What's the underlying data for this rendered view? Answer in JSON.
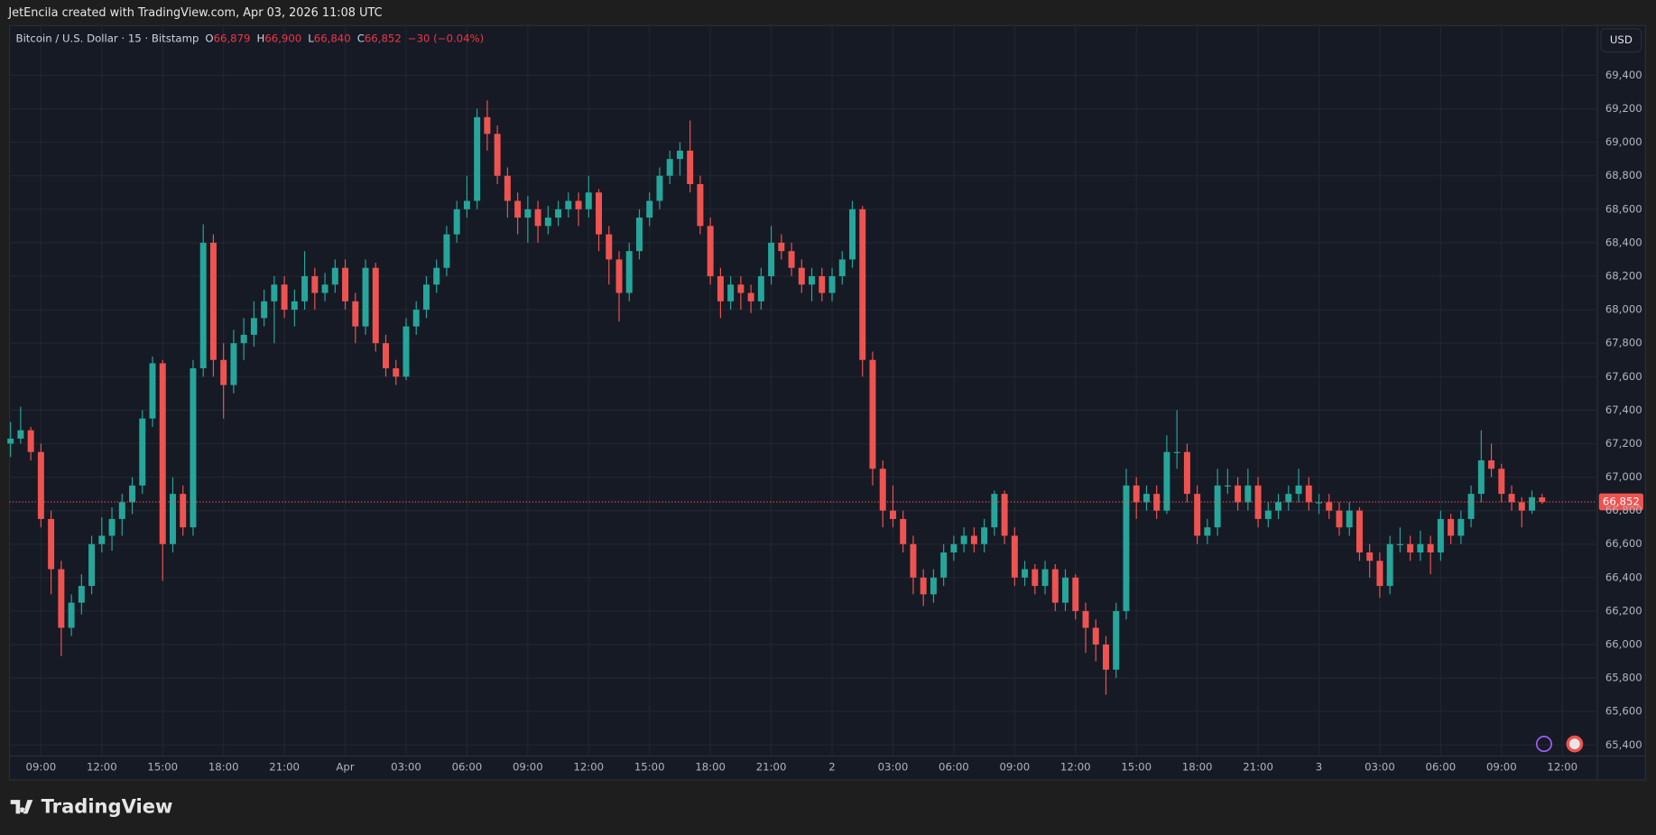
{
  "header": {
    "credit": "JetEncila created with TradingView.com, Apr 03, 2026 11:08 UTC"
  },
  "chart_data": {
    "type": "candlestick",
    "symbol": "Bitcoin / U.S. Dollar · 15 · Bitstamp",
    "ohlc_legend": [
      {
        "key": "O",
        "text": "66,879"
      },
      {
        "key": "H",
        "text": "66,900"
      },
      {
        "key": "L",
        "text": "66,840"
      },
      {
        "key": "C",
        "text": "66,852"
      }
    ],
    "change": "−30 (−0.04%)",
    "currency": "USD",
    "up_color": "#26a69a",
    "down_color": "#ef5350",
    "ohlc": [
      [
        67200,
        67330,
        67120,
        67230
      ],
      [
        67230,
        67420,
        67200,
        67280
      ],
      [
        67280,
        67300,
        67100,
        67150
      ],
      [
        67150,
        67200,
        66700,
        66750
      ],
      [
        66750,
        66800,
        66300,
        66450
      ],
      [
        66450,
        66500,
        65930,
        66100
      ],
      [
        66100,
        66300,
        66050,
        66250
      ],
      [
        66250,
        66420,
        66180,
        66350
      ],
      [
        66350,
        66650,
        66300,
        66600
      ],
      [
        66600,
        66760,
        66550,
        66650
      ],
      [
        66650,
        66820,
        66560,
        66750
      ],
      [
        66750,
        66900,
        66650,
        66850
      ],
      [
        66850,
        67000,
        66780,
        66950
      ],
      [
        66950,
        67400,
        66900,
        67350
      ],
      [
        67350,
        67720,
        67300,
        67680
      ],
      [
        67680,
        67700,
        66380,
        66600
      ],
      [
        66600,
        67000,
        66550,
        66900
      ],
      [
        66900,
        66950,
        66650,
        66700
      ],
      [
        66700,
        67700,
        66650,
        67650
      ],
      [
        67650,
        68510,
        67600,
        68400
      ],
      [
        68400,
        68450,
        67600,
        67700
      ],
      [
        67700,
        67800,
        67350,
        67550
      ],
      [
        67550,
        67880,
        67500,
        67800
      ],
      [
        67800,
        67950,
        67700,
        67850
      ],
      [
        67850,
        68050,
        67780,
        67950
      ],
      [
        67950,
        68120,
        67900,
        68050
      ],
      [
        68050,
        68200,
        67800,
        68150
      ],
      [
        68150,
        68200,
        67950,
        68000
      ],
      [
        68000,
        68120,
        67900,
        68050
      ],
      [
        68050,
        68350,
        68000,
        68200
      ],
      [
        68200,
        68250,
        68000,
        68100
      ],
      [
        68100,
        68220,
        68050,
        68150
      ],
      [
        68150,
        68300,
        68100,
        68250
      ],
      [
        68250,
        68300,
        68000,
        68050
      ],
      [
        68050,
        68100,
        67800,
        67900
      ],
      [
        67900,
        68300,
        67850,
        68250
      ],
      [
        68250,
        68280,
        67750,
        67800
      ],
      [
        67800,
        67850,
        67600,
        67650
      ],
      [
        67650,
        67700,
        67550,
        67600
      ],
      [
        67600,
        67950,
        67580,
        67900
      ],
      [
        67900,
        68050,
        67850,
        68000
      ],
      [
        68000,
        68200,
        67950,
        68150
      ],
      [
        68150,
        68300,
        68100,
        68250
      ],
      [
        68250,
        68500,
        68200,
        68450
      ],
      [
        68450,
        68650,
        68400,
        68600
      ],
      [
        68600,
        68800,
        68550,
        68650
      ],
      [
        68650,
        69200,
        68600,
        69150
      ],
      [
        69150,
        69250,
        68950,
        69050
      ],
      [
        69050,
        69100,
        68750,
        68800
      ],
      [
        68800,
        68850,
        68550,
        68650
      ],
      [
        68650,
        68700,
        68450,
        68550
      ],
      [
        68550,
        68680,
        68400,
        68600
      ],
      [
        68600,
        68650,
        68400,
        68500
      ],
      [
        68500,
        68620,
        68450,
        68550
      ],
      [
        68550,
        68650,
        68500,
        68600
      ],
      [
        68600,
        68700,
        68550,
        68650
      ],
      [
        68650,
        68700,
        68500,
        68600
      ],
      [
        68600,
        68800,
        68550,
        68700
      ],
      [
        68700,
        68720,
        68350,
        68450
      ],
      [
        68450,
        68500,
        68150,
        68300
      ],
      [
        68300,
        68350,
        67930,
        68100
      ],
      [
        68100,
        68400,
        68050,
        68350
      ],
      [
        68350,
        68600,
        68300,
        68550
      ],
      [
        68550,
        68700,
        68500,
        68650
      ],
      [
        68650,
        68850,
        68600,
        68800
      ],
      [
        68800,
        68950,
        68750,
        68900
      ],
      [
        68900,
        69000,
        68800,
        68950
      ],
      [
        68950,
        69130,
        68700,
        68750
      ],
      [
        68750,
        68800,
        68450,
        68500
      ],
      [
        68500,
        68550,
        68150,
        68200
      ],
      [
        68200,
        68250,
        67950,
        68050
      ],
      [
        68050,
        68200,
        68000,
        68150
      ],
      [
        68150,
        68200,
        68000,
        68100
      ],
      [
        68100,
        68150,
        67980,
        68050
      ],
      [
        68050,
        68250,
        68000,
        68200
      ],
      [
        68200,
        68500,
        68150,
        68400
      ],
      [
        68400,
        68450,
        68300,
        68350
      ],
      [
        68350,
        68400,
        68200,
        68250
      ],
      [
        68250,
        68300,
        68100,
        68150
      ],
      [
        68150,
        68250,
        68050,
        68200
      ],
      [
        68200,
        68250,
        68050,
        68100
      ],
      [
        68100,
        68250,
        68050,
        68200
      ],
      [
        68200,
        68350,
        68150,
        68300
      ],
      [
        68300,
        68650,
        68250,
        68600
      ],
      [
        68600,
        68620,
        67600,
        67700
      ],
      [
        67700,
        67750,
        66950,
        67050
      ],
      [
        67050,
        67100,
        66700,
        66800
      ],
      [
        66800,
        66950,
        66700,
        66750
      ],
      [
        66750,
        66800,
        66550,
        66600
      ],
      [
        66600,
        66650,
        66300,
        66400
      ],
      [
        66400,
        66450,
        66230,
        66300
      ],
      [
        66300,
        66450,
        66250,
        66400
      ],
      [
        66400,
        66600,
        66350,
        66550
      ],
      [
        66550,
        66650,
        66500,
        66600
      ],
      [
        66600,
        66700,
        66550,
        66650
      ],
      [
        66650,
        66700,
        66550,
        66600
      ],
      [
        66600,
        66750,
        66550,
        66700
      ],
      [
        66700,
        66920,
        66650,
        66900
      ],
      [
        66900,
        66920,
        66600,
        66650
      ],
      [
        66650,
        66700,
        66350,
        66400
      ],
      [
        66400,
        66500,
        66350,
        66450
      ],
      [
        66450,
        66480,
        66300,
        66350
      ],
      [
        66350,
        66500,
        66300,
        66450
      ],
      [
        66450,
        66480,
        66200,
        66250
      ],
      [
        66250,
        66450,
        66200,
        66400
      ],
      [
        66400,
        66420,
        66150,
        66200
      ],
      [
        66200,
        66250,
        65950,
        66100
      ],
      [
        66100,
        66150,
        65900,
        66000
      ],
      [
        66000,
        66050,
        65700,
        65850
      ],
      [
        65850,
        66250,
        65800,
        66200
      ],
      [
        66200,
        67050,
        66150,
        66950
      ],
      [
        66950,
        67000,
        66750,
        66850
      ],
      [
        66850,
        66950,
        66800,
        66900
      ],
      [
        66900,
        66950,
        66750,
        66800
      ],
      [
        66800,
        67250,
        66780,
        67150
      ],
      [
        67150,
        67400,
        67050,
        67150
      ],
      [
        67150,
        67200,
        66850,
        66900
      ],
      [
        66900,
        66950,
        66600,
        66650
      ],
      [
        66650,
        66750,
        66600,
        66700
      ],
      [
        66700,
        67050,
        66650,
        66950
      ],
      [
        66950,
        67050,
        66900,
        66950
      ],
      [
        66950,
        67000,
        66800,
        66850
      ],
      [
        66850,
        67050,
        66800,
        66950
      ],
      [
        66950,
        67000,
        66700,
        66750
      ],
      [
        66750,
        66850,
        66700,
        66800
      ],
      [
        66800,
        66900,
        66750,
        66850
      ],
      [
        66850,
        66950,
        66800,
        66900
      ],
      [
        66900,
        67050,
        66850,
        66950
      ],
      [
        66950,
        67000,
        66800,
        66850
      ],
      [
        66850,
        66900,
        66780,
        66850
      ],
      [
        66850,
        66900,
        66750,
        66800
      ],
      [
        66800,
        66850,
        66650,
        66700
      ],
      [
        66700,
        66850,
        66650,
        66800
      ],
      [
        66800,
        66820,
        66500,
        66550
      ],
      [
        66550,
        66600,
        66400,
        66500
      ],
      [
        66500,
        66550,
        66280,
        66350
      ],
      [
        66350,
        66650,
        66300,
        66600
      ],
      [
        66600,
        66700,
        66550,
        66600
      ],
      [
        66600,
        66650,
        66500,
        66550
      ],
      [
        66550,
        66680,
        66500,
        66600
      ],
      [
        66600,
        66650,
        66420,
        66550
      ],
      [
        66550,
        66800,
        66500,
        66750
      ],
      [
        66750,
        66780,
        66600,
        66650
      ],
      [
        66650,
        66800,
        66600,
        66750
      ],
      [
        66750,
        66950,
        66700,
        66900
      ],
      [
        66900,
        67280,
        66850,
        67100
      ],
      [
        67100,
        67200,
        67000,
        67050
      ],
      [
        67050,
        67080,
        66850,
        66900
      ],
      [
        66900,
        66950,
        66800,
        66850
      ],
      [
        66850,
        66880,
        66700,
        66800
      ],
      [
        66800,
        66920,
        66780,
        66880
      ],
      [
        66879,
        66900,
        66840,
        66852
      ]
    ],
    "xlim": [
      -0.1,
      156.4
    ],
    "xticks": [
      {
        "value": 3,
        "label": "09:00"
      },
      {
        "value": 9,
        "label": "12:00"
      },
      {
        "value": 15,
        "label": "15:00"
      },
      {
        "value": 21,
        "label": "18:00"
      },
      {
        "value": 27,
        "label": "21:00"
      },
      {
        "value": 33,
        "label": "Apr"
      },
      {
        "value": 39,
        "label": "03:00"
      },
      {
        "value": 45,
        "label": "06:00"
      },
      {
        "value": 51,
        "label": "09:00"
      },
      {
        "value": 57,
        "label": "12:00"
      },
      {
        "value": 63,
        "label": "15:00"
      },
      {
        "value": 69,
        "label": "18:00"
      },
      {
        "value": 75,
        "label": "21:00"
      },
      {
        "value": 81,
        "label": "2"
      },
      {
        "value": 87,
        "label": "03:00"
      },
      {
        "value": 93,
        "label": "06:00"
      },
      {
        "value": 99,
        "label": "09:00"
      },
      {
        "value": 105,
        "label": "12:00"
      },
      {
        "value": 111,
        "label": "15:00"
      },
      {
        "value": 117,
        "label": "18:00"
      },
      {
        "value": 123,
        "label": "21:00"
      },
      {
        "value": 129,
        "label": "3"
      },
      {
        "value": 135,
        "label": "03:00"
      },
      {
        "value": 141,
        "label": "06:00"
      },
      {
        "value": 147,
        "label": "09:00"
      },
      {
        "value": 153,
        "label": "12:00"
      }
    ],
    "ylim": [
      65337,
      69697
    ],
    "yticks": [
      {
        "value": 65400,
        "label": "65,400"
      },
      {
        "value": 65600,
        "label": "65,600"
      },
      {
        "value": 65800,
        "label": "65,800"
      },
      {
        "value": 66000,
        "label": "66,000"
      },
      {
        "value": 66200,
        "label": "66,200"
      },
      {
        "value": 66400,
        "label": "66,400"
      },
      {
        "value": 66600,
        "label": "66,600"
      },
      {
        "value": 66800,
        "label": "66,800"
      },
      {
        "value": 67000,
        "label": "67,000"
      },
      {
        "value": 67200,
        "label": "67,200"
      },
      {
        "value": 67400,
        "label": "67,400"
      },
      {
        "value": 67600,
        "label": "67,600"
      },
      {
        "value": 67800,
        "label": "67,800"
      },
      {
        "value": 68000,
        "label": "68,000"
      },
      {
        "value": 68200,
        "label": "68,200"
      },
      {
        "value": 68400,
        "label": "68,400"
      },
      {
        "value": 68600,
        "label": "68,600"
      },
      {
        "value": 68800,
        "label": "68,800"
      },
      {
        "value": 69000,
        "label": "69,000"
      },
      {
        "value": 69200,
        "label": "69,200"
      },
      {
        "value": 69400,
        "label": "69,400"
      }
    ],
    "last_price": {
      "value": 66852,
      "label": "66,852"
    },
    "grid": true
  },
  "footer": {
    "brand": "TradingView"
  }
}
